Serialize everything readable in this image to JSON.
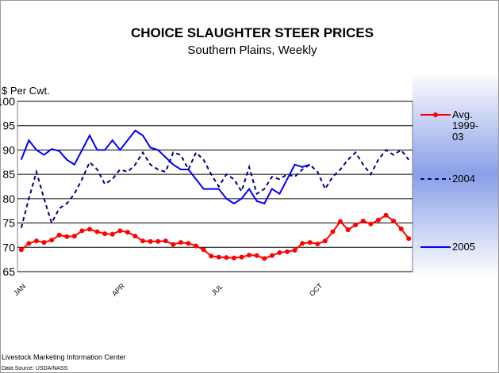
{
  "chart_data": {
    "type": "line",
    "title": "CHOICE  SLAUGHTER  STEER  PRICES",
    "subtitle": "Southern Plains, Weekly",
    "y_label": "$ Per Cwt.",
    "source": "Livestock Marketing Information Center",
    "data_source": "Data Source:  USDA/NASS",
    "categories": [
      "JAN",
      null,
      null,
      null,
      null,
      null,
      null,
      null,
      null,
      null,
      null,
      null,
      null,
      "APR",
      null,
      null,
      null,
      null,
      null,
      null,
      null,
      null,
      null,
      null,
      null,
      null,
      "JUL",
      null,
      null,
      null,
      null,
      null,
      null,
      null,
      null,
      null,
      null,
      null,
      null,
      "OCT",
      null,
      null,
      null,
      null,
      null,
      null,
      null,
      null,
      null,
      null,
      null,
      null
    ],
    "series": [
      {
        "name": "Avg. 1999-03",
        "color": "#ff0000",
        "line_style": "solid",
        "marker": "circle",
        "values": [
          69.5,
          70.8,
          71.3,
          71,
          71.5,
          72.5,
          72.2,
          72.3,
          73.4,
          73.7,
          73.2,
          72.8,
          72.7,
          73.4,
          73.1,
          72.3,
          71.3,
          71.2,
          71.2,
          71.3,
          70.6,
          71,
          70.8,
          70.3,
          69.5,
          68.2,
          68,
          67.9,
          67.8,
          68,
          68.4,
          68.3,
          67.7,
          68.3,
          68.9,
          69.1,
          69.4,
          70.8,
          71,
          70.7,
          71.3,
          73.2,
          75.3,
          73.6,
          74.6,
          75.4,
          74.8,
          75.6,
          76.6,
          75.4,
          73.8,
          71.8
        ]
      },
      {
        "name": "2004",
        "color": "#000080",
        "line_style": "dashed",
        "marker": "none",
        "values": [
          74,
          80,
          85.5,
          80,
          75,
          78,
          79,
          81,
          84,
          87.5,
          86,
          83,
          84,
          86,
          85.5,
          87,
          89.5,
          87,
          86,
          85.5,
          89.5,
          89,
          86,
          89.5,
          88,
          85,
          82.5,
          85,
          84,
          81.5,
          86.5,
          81,
          82,
          84.5,
          84,
          85,
          84.5,
          86,
          87,
          85.5,
          82,
          84.5,
          86,
          88,
          89.5,
          87,
          85,
          88,
          90,
          89,
          90,
          88
        ]
      },
      {
        "name": "2005",
        "color": "#0000ff",
        "line_style": "solid",
        "marker": "none",
        "values": [
          88,
          92,
          90,
          89,
          90.2,
          89.8,
          88,
          87,
          90,
          93,
          90,
          90,
          92,
          90,
          92,
          94,
          93,
          90.5,
          90,
          88.5,
          87,
          86,
          86,
          84,
          82,
          82,
          82,
          80,
          79,
          80,
          82,
          79.5,
          79,
          82,
          81,
          84,
          87,
          86.5,
          87,
          null,
          null,
          null,
          null,
          null,
          null,
          null,
          null,
          null,
          null,
          null,
          null,
          null
        ]
      }
    ],
    "ylim": [
      65,
      100
    ],
    "yticks": [
      65,
      70,
      75,
      80,
      85,
      90,
      95,
      100
    ],
    "grid": true
  }
}
